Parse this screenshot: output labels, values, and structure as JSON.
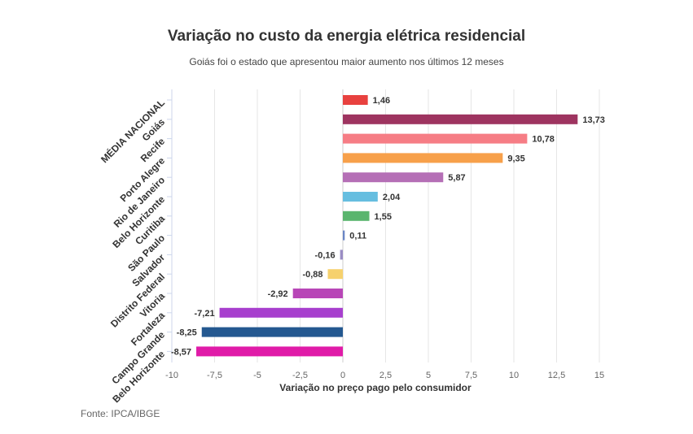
{
  "chart_data": {
    "type": "bar",
    "orientation": "horizontal",
    "title": "Variação no custo da energia elétrica residencial",
    "subtitle": "Goiás foi o estado que apresentou maior aumento nos últimos 12 meses",
    "xlabel": "Variação no preço pago pelo consumidor",
    "ylabel": "",
    "xlim": [
      -10,
      15
    ],
    "xticks": [
      -10,
      -7.5,
      -5,
      -2.5,
      0,
      2.5,
      5,
      7.5,
      10,
      12.5,
      15
    ],
    "xtick_labels": [
      "-10",
      "-7,5",
      "-5",
      "-2,5",
      "0",
      "2,5",
      "5",
      "7,5",
      "10",
      "12,5",
      "15"
    ],
    "grid": true,
    "categories": [
      "MÉDIA NACIONAL",
      "Goiás",
      "Recife",
      "Porto Alegre",
      "Rio de Janeiro",
      "Belo Horizonte",
      "Curitiba",
      "São Paulo",
      "Salvador",
      "Distrito Federal",
      "Vitoria",
      "Fortaleza",
      "Campo Grande",
      "Belo Horizonte"
    ],
    "values": [
      1.46,
      13.73,
      10.78,
      9.35,
      5.87,
      2.04,
      1.55,
      0.11,
      -0.16,
      -0.88,
      -2.92,
      -7.21,
      -8.25,
      -8.57
    ],
    "value_labels": [
      "1,46",
      "13,73",
      "10,78",
      "9,35",
      "5,87",
      "2,04",
      "1,55",
      "0,11",
      "-0,16",
      "-0,88",
      "-2,92",
      "-7,21",
      "-8,25",
      "-8,57"
    ],
    "colors": [
      "#e8413f",
      "#9e3460",
      "#f67d85",
      "#f7a04a",
      "#b56fb6",
      "#66bee0",
      "#5ab56e",
      "#6a86c5",
      "#9a8cc4",
      "#f6d16d",
      "#b846b7",
      "#a73fce",
      "#245890",
      "#e01ba8"
    ]
  },
  "footer": {
    "source": "Fonte: IPCA/IBGE"
  }
}
